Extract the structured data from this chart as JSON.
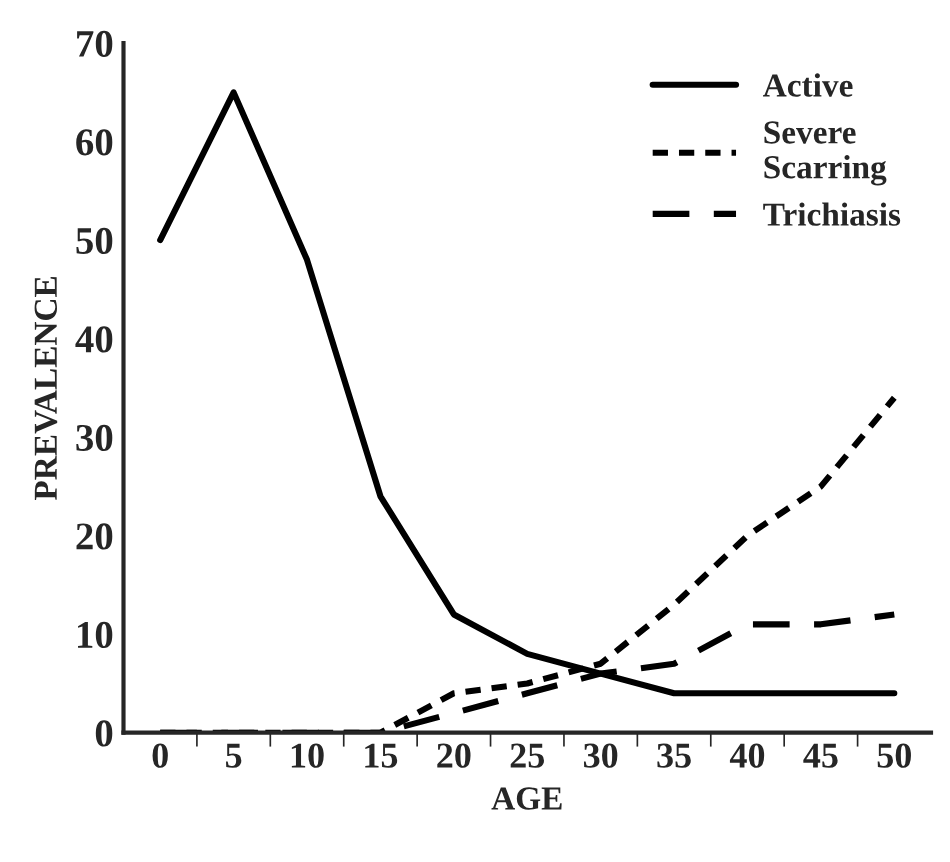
{
  "chart_data": {
    "type": "line",
    "xlabel": "AGE",
    "ylabel": "PREVALENCE",
    "categories": [
      "0",
      "5",
      "10",
      "15",
      "20",
      "25",
      "30",
      "35",
      "40",
      "45",
      "50"
    ],
    "ylim": [
      0,
      70
    ],
    "yticks": [
      0,
      10,
      20,
      30,
      40,
      50,
      60,
      70
    ],
    "grid": false,
    "legend": "top right",
    "marker": "none",
    "series": [
      {
        "name": "Active",
        "color": "#000000",
        "line_style": "solid",
        "values": [
          50,
          65,
          48,
          24,
          12,
          8,
          6,
          4,
          4,
          4,
          4
        ]
      },
      {
        "name": "Severe\nScarring",
        "color": "#000000",
        "line_style": "dotted",
        "values": [
          0,
          0,
          0,
          0,
          4,
          5,
          7,
          13,
          20,
          25,
          34
        ]
      },
      {
        "name": "Trichiasis",
        "color": "#000000",
        "line_style": "dashed",
        "values": [
          0,
          0,
          0,
          0,
          2,
          4,
          6,
          7,
          11,
          11,
          12
        ]
      }
    ]
  }
}
